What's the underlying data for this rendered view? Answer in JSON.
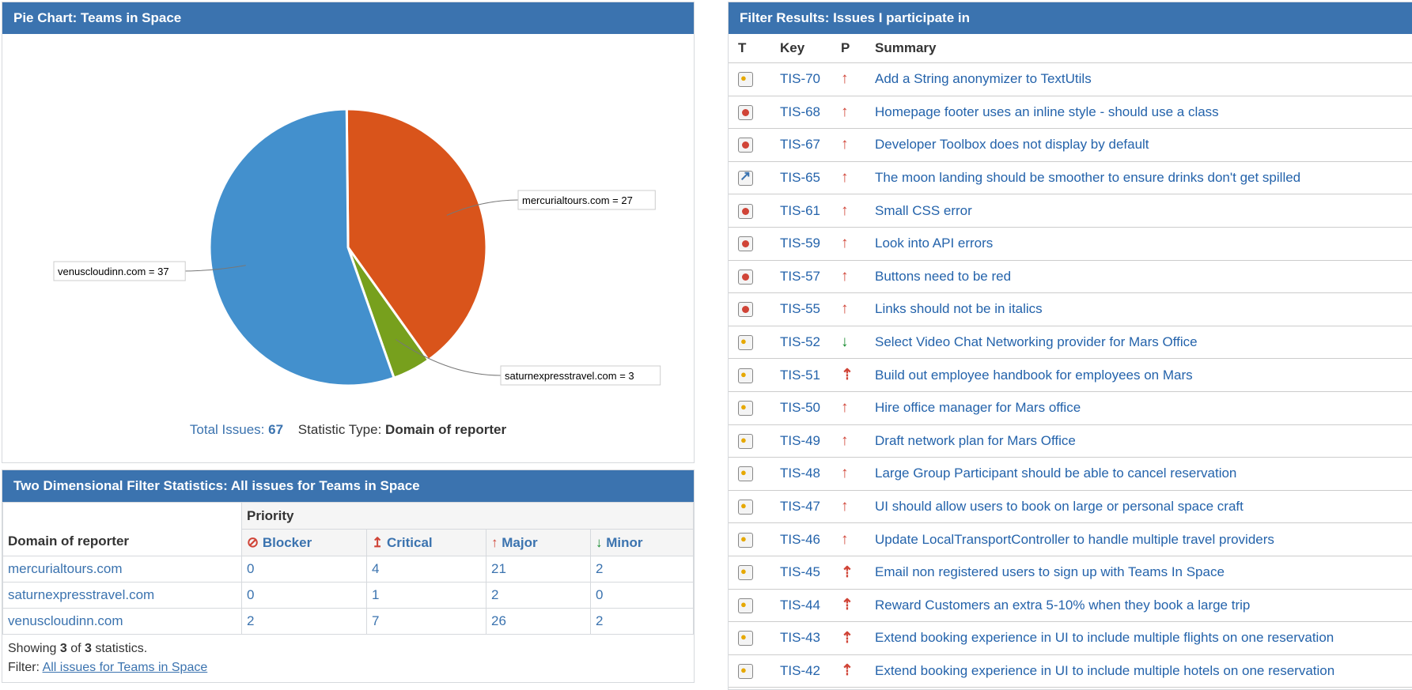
{
  "pie": {
    "title": "Pie Chart: Teams in Space",
    "total_label": "Total Issues:",
    "total_value": "67",
    "stat_label": "Statistic Type:",
    "stat_value": "Domain of reporter",
    "colors": {
      "mercurialtours.com": "#d9541b",
      "saturnexpresstravel.com": "#77a01d",
      "venuscloudinn.com": "#4390cd"
    }
  },
  "chart_data": {
    "type": "pie",
    "title": "",
    "slices": [
      {
        "label": "mercurialtours.com = 27",
        "value": 27
      },
      {
        "label": "saturnexpresstravel.com = 3",
        "value": 3
      },
      {
        "label": "venuscloudinn.com = 37",
        "value": 37
      }
    ]
  },
  "twod": {
    "title": "Two Dimensional Filter Statistics: All issues for Teams in Space",
    "domain_header": "Domain of reporter",
    "priority_header": "Priority",
    "columns": [
      {
        "label": "Blocker",
        "icon": "blocker-icon"
      },
      {
        "label": "Critical",
        "icon": "critical-arrow-up-icon"
      },
      {
        "label": "Major",
        "icon": "major-arrow-up-icon"
      },
      {
        "label": "Minor",
        "icon": "minor-arrow-down-icon"
      }
    ],
    "rows": [
      {
        "domain": "mercurialtours.com",
        "values": [
          "0",
          "4",
          "21",
          "2"
        ]
      },
      {
        "domain": "saturnexpresstravel.com",
        "values": [
          "0",
          "1",
          "2",
          "0"
        ]
      },
      {
        "domain": "venuscloudinn.com",
        "values": [
          "2",
          "7",
          "26",
          "2"
        ]
      }
    ],
    "showing_prefix": "Showing",
    "showing_count": "3",
    "showing_of": "of",
    "showing_total": "3",
    "showing_suffix": "statistics.",
    "filter_label": "Filter:",
    "filter_link": "All issues for Teams in Space"
  },
  "filter": {
    "title": "Filter Results: Issues I participate in",
    "headers": {
      "t": "T",
      "key": "Key",
      "p": "P",
      "summary": "Summary"
    },
    "issues": [
      {
        "type": "idea",
        "key": "TIS-70",
        "priority": "major",
        "summary": "Add a String anonymizer to TextUtils"
      },
      {
        "type": "bug",
        "key": "TIS-68",
        "priority": "major",
        "summary": "Homepage footer uses an inline style - should use a class"
      },
      {
        "type": "bug",
        "key": "TIS-67",
        "priority": "major",
        "summary": "Developer Toolbox does not display by default"
      },
      {
        "type": "improvement",
        "key": "TIS-65",
        "priority": "major",
        "summary": "The moon landing should be smoother to ensure drinks don't get spilled"
      },
      {
        "type": "bug",
        "key": "TIS-61",
        "priority": "major",
        "summary": "Small CSS error"
      },
      {
        "type": "bug",
        "key": "TIS-59",
        "priority": "major",
        "summary": "Look into API errors"
      },
      {
        "type": "bug",
        "key": "TIS-57",
        "priority": "major",
        "summary": "Buttons need to be red"
      },
      {
        "type": "bug",
        "key": "TIS-55",
        "priority": "major",
        "summary": "Links should not be in italics"
      },
      {
        "type": "idea",
        "key": "TIS-52",
        "priority": "minor",
        "summary": "Select Video Chat Networking provider for Mars Office"
      },
      {
        "type": "idea",
        "key": "TIS-51",
        "priority": "critical",
        "summary": "Build out employee handbook for employees on Mars"
      },
      {
        "type": "idea",
        "key": "TIS-50",
        "priority": "major",
        "summary": "Hire office manager for Mars office"
      },
      {
        "type": "idea",
        "key": "TIS-49",
        "priority": "major",
        "summary": "Draft network plan for Mars Office"
      },
      {
        "type": "idea",
        "key": "TIS-48",
        "priority": "major",
        "summary": "Large Group Participant should be able to cancel reservation"
      },
      {
        "type": "idea",
        "key": "TIS-47",
        "priority": "major",
        "summary": "UI should allow users to book on large or personal space craft"
      },
      {
        "type": "idea",
        "key": "TIS-46",
        "priority": "major",
        "summary": "Update LocalTransportController to handle multiple travel providers"
      },
      {
        "type": "idea",
        "key": "TIS-45",
        "priority": "critical",
        "summary": "Email non registered users to sign up with Teams In Space"
      },
      {
        "type": "idea",
        "key": "TIS-44",
        "priority": "critical",
        "summary": "Reward Customers an extra 5-10% when they book a large trip"
      },
      {
        "type": "idea",
        "key": "TIS-43",
        "priority": "critical",
        "summary": "Extend booking experience in UI to include multiple flights on one reservation"
      },
      {
        "type": "idea",
        "key": "TIS-42",
        "priority": "critical",
        "summary": "Extend booking experience in UI to include multiple hotels on one reservation"
      }
    ]
  }
}
